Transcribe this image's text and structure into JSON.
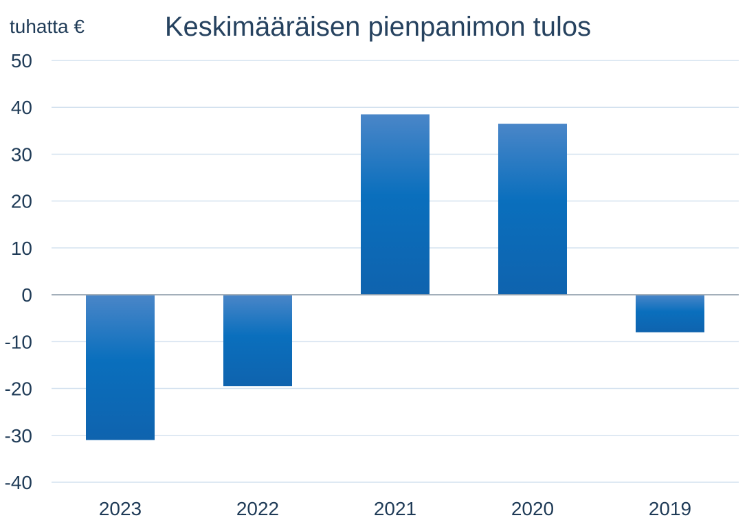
{
  "chart_data": {
    "type": "bar",
    "title": "Keskimääräisen pienpanimon tulos",
    "unit_label": "tuhatta €",
    "xlabel": "",
    "ylabel": "",
    "categories": [
      "2023",
      "2022",
      "2021",
      "2020",
      "2019"
    ],
    "values": [
      -31,
      -19.5,
      38.5,
      36.5,
      -8
    ],
    "ylim": [
      -40,
      50
    ],
    "yticks": [
      50,
      40,
      30,
      20,
      10,
      0,
      -10,
      -20,
      -30,
      -40
    ],
    "grid": true,
    "legend": "none",
    "colors": {
      "bar_top": "#4a86c8",
      "bar_mid": "#0a6fbd",
      "bar_bottom": "#0f63ae",
      "grid": "#d4e2ef",
      "text": "#1f3b57"
    }
  }
}
